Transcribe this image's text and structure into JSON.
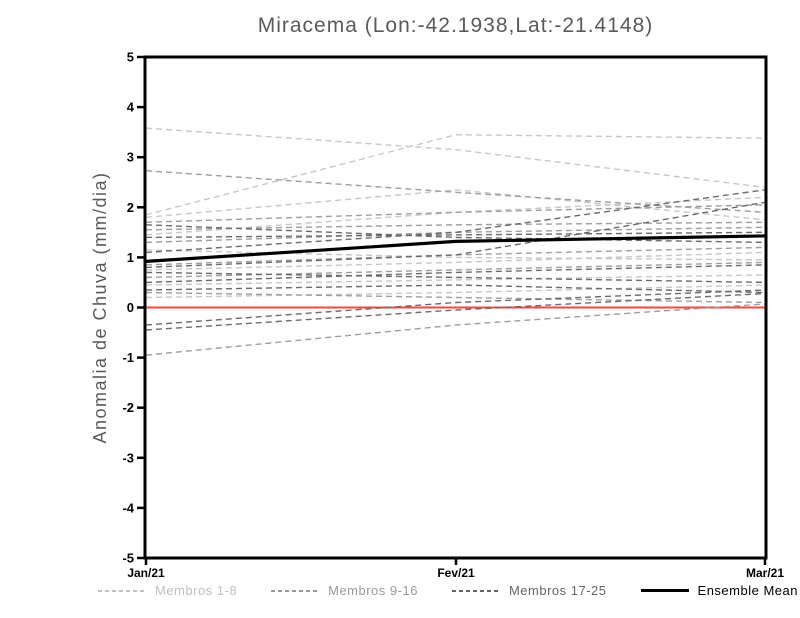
{
  "title": "Miracema (Lon:-42.1938,Lat:-21.4148)",
  "colors": {
    "title_text": "#5a5a5a",
    "axis_text": "#000000",
    "frame": "#000000",
    "zero_line": "#ef4a41",
    "ensemble_mean": "#000000",
    "group1": "#c7c7c7",
    "group2": "#9e9e9e",
    "group3": "#6b6b6b"
  },
  "legend": {
    "items": [
      {
        "label": "Membros 1-8",
        "color": "#c0c0c0",
        "style": "dashed"
      },
      {
        "label": "Membros 9-16",
        "color": "#9a9a9a",
        "style": "dashed"
      },
      {
        "label": "Membros 17-25",
        "color": "#666666",
        "style": "dashed"
      },
      {
        "label": "Ensemble Mean",
        "color": "#000000",
        "style": "solid"
      }
    ]
  },
  "chart_data": {
    "type": "line",
    "title": "Miracema (Lon:-42.1938,Lat:-21.4148)",
    "ylabel": "Anomalia de Chuva (mm/dia)",
    "xlabel": "",
    "x_ticklabels": [
      "Jan/21",
      "Fev/21",
      "Mar/21"
    ],
    "y_ticks": [
      -5,
      -4,
      -3,
      -2,
      -1,
      0,
      1,
      2,
      3,
      4,
      5
    ],
    "ylim": [
      -5,
      5
    ],
    "grid": false,
    "legend_position": "bottom",
    "zero_line": 0,
    "series": [
      {
        "name": "Membros 1-8",
        "members": [
          [
            3.58,
            3.15,
            2.4
          ],
          [
            1.85,
            3.45,
            3.38
          ],
          [
            1.8,
            2.35,
            1.75
          ],
          [
            1.45,
            1.9,
            2.2
          ],
          [
            1.15,
            1.0,
            0.95
          ],
          [
            0.75,
            0.9,
            1.1
          ],
          [
            0.45,
            0.55,
            0.65
          ],
          [
            0.2,
            0.3,
            0.45
          ]
        ]
      },
      {
        "name": "Membros 9-16",
        "members": [
          [
            2.73,
            2.3,
            1.9
          ],
          [
            1.7,
            1.9,
            2.05
          ],
          [
            1.55,
            1.65,
            1.7
          ],
          [
            1.3,
            1.5,
            1.6
          ],
          [
            0.85,
            1.05,
            1.2
          ],
          [
            0.6,
            0.75,
            0.9
          ],
          [
            0.3,
            0.2,
            0.1
          ],
          [
            -0.95,
            -0.35,
            0.07
          ]
        ]
      },
      {
        "name": "Membros 17-25",
        "members": [
          [
            1.65,
            1.4,
            1.3
          ],
          [
            1.4,
            1.45,
            1.5
          ],
          [
            1.1,
            1.5,
            2.35
          ],
          [
            0.8,
            1.05,
            2.1
          ],
          [
            0.7,
            0.6,
            0.5
          ],
          [
            0.5,
            0.7,
            0.85
          ],
          [
            0.35,
            0.45,
            0.3
          ],
          [
            -0.35,
            0.1,
            0.35
          ],
          [
            -0.45,
            -0.05,
            0.28
          ]
        ]
      }
    ],
    "ensemble_mean": [
      0.92,
      1.32,
      1.43
    ]
  }
}
